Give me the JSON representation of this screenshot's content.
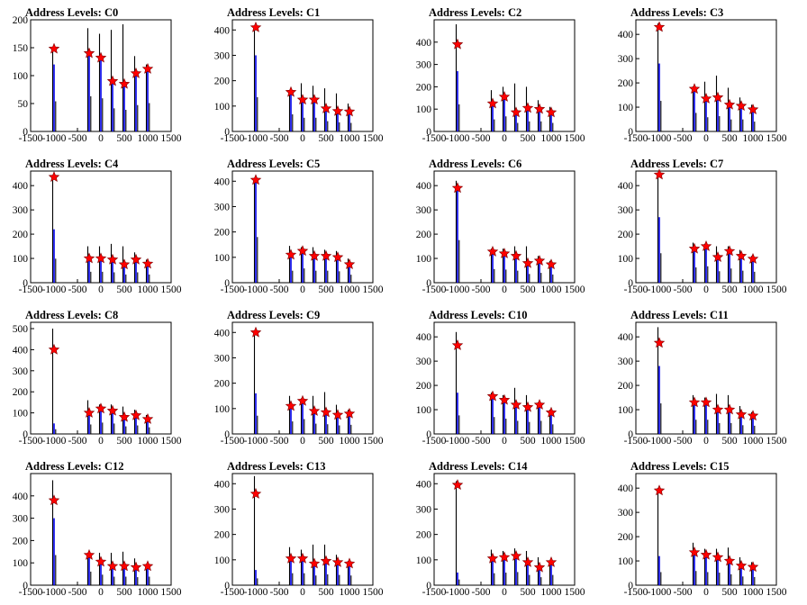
{
  "chart_data": [
    {
      "type": "bar",
      "title": "Address Levels: C0",
      "xlim": [
        -1500,
        1500
      ],
      "ylim": [
        0,
        200
      ],
      "xticks": [
        -1500,
        -1000,
        -500,
        0,
        500,
        1000,
        1500
      ],
      "yticks": [
        0,
        50,
        100,
        150,
        200
      ],
      "centers": [
        -1000,
        -250,
        0,
        250,
        500,
        750,
        1000
      ],
      "peaks": [
        [
          148,
          120
        ],
        [
          185,
          140
        ],
        [
          175,
          132
        ],
        [
          182,
          92
        ],
        [
          192,
          86
        ],
        [
          135,
          105
        ],
        [
          120,
          113
        ]
      ],
      "stars": [
        148,
        140,
        132,
        90,
        85,
        104,
        112
      ]
    },
    {
      "type": "bar",
      "title": "Address Levels: C1",
      "xlim": [
        -1500,
        1500
      ],
      "ylim": [
        0,
        440
      ],
      "xticks": [
        -1500,
        -1000,
        -500,
        0,
        500,
        1000,
        1500
      ],
      "yticks": [
        0,
        100,
        200,
        300,
        400
      ],
      "centers": [
        -1000,
        -250,
        0,
        250,
        500,
        750,
        1000
      ],
      "peaks": [
        [
          410,
          300
        ],
        [
          160,
          150
        ],
        [
          190,
          120
        ],
        [
          180,
          120
        ],
        [
          170,
          90
        ],
        [
          150,
          80
        ],
        [
          110,
          75
        ]
      ],
      "stars": [
        410,
        155,
        125,
        125,
        90,
        80,
        78
      ]
    },
    {
      "type": "bar",
      "title": "Address Levels: C2",
      "xlim": [
        -1500,
        1500
      ],
      "ylim": [
        0,
        500
      ],
      "xticks": [
        -1500,
        -1000,
        -500,
        0,
        500,
        1000,
        1500
      ],
      "yticks": [
        0,
        100,
        200,
        300,
        400
      ],
      "centers": [
        -1000,
        -250,
        0,
        250,
        500,
        750,
        1000
      ],
      "peaks": [
        [
          480,
          270
        ],
        [
          185,
          120
        ],
        [
          200,
          150
        ],
        [
          215,
          85
        ],
        [
          200,
          100
        ],
        [
          140,
          100
        ],
        [
          110,
          85
        ]
      ],
      "stars": [
        390,
        125,
        155,
        85,
        105,
        100,
        85
      ]
    },
    {
      "type": "bar",
      "title": "Address Levels: C3",
      "xlim": [
        -1500,
        1500
      ],
      "ylim": [
        0,
        460
      ],
      "xticks": [
        -1500,
        -1000,
        -500,
        0,
        500,
        1000,
        1500
      ],
      "yticks": [
        0,
        100,
        200,
        300,
        400
      ],
      "centers": [
        -1000,
        -250,
        0,
        250,
        500,
        750,
        1000
      ],
      "peaks": [
        [
          445,
          280
        ],
        [
          185,
          170
        ],
        [
          205,
          130
        ],
        [
          230,
          140
        ],
        [
          180,
          110
        ],
        [
          140,
          110
        ],
        [
          110,
          90
        ]
      ],
      "stars": [
        430,
        175,
        135,
        140,
        110,
        105,
        90
      ]
    },
    {
      "type": "bar",
      "title": "Address Levels: C4",
      "xlim": [
        -1500,
        1500
      ],
      "ylim": [
        0,
        460
      ],
      "xticks": [
        -1500,
        -1000,
        -500,
        0,
        500,
        1000,
        1500
      ],
      "yticks": [
        0,
        100,
        200,
        300,
        400
      ],
      "centers": [
        -1000,
        -250,
        0,
        250,
        500,
        750,
        1000
      ],
      "peaks": [
        [
          440,
          220
        ],
        [
          150,
          100
        ],
        [
          150,
          100
        ],
        [
          160,
          95
        ],
        [
          150,
          75
        ],
        [
          125,
          95
        ],
        [
          95,
          75
        ]
      ],
      "stars": [
        435,
        100,
        100,
        95,
        75,
        95,
        78
      ]
    },
    {
      "type": "bar",
      "title": "Address Levels: C5",
      "xlim": [
        -1500,
        1500
      ],
      "ylim": [
        0,
        440
      ],
      "xticks": [
        -1500,
        -1000,
        -500,
        0,
        500,
        1000,
        1500
      ],
      "yticks": [
        0,
        100,
        200,
        300,
        400
      ],
      "centers": [
        -1000,
        -250,
        0,
        250,
        500,
        750,
        1000
      ],
      "peaks": [
        [
          410,
          400
        ],
        [
          145,
          105
        ],
        [
          140,
          125
        ],
        [
          140,
          105
        ],
        [
          130,
          105
        ],
        [
          125,
          100
        ],
        [
          95,
          70
        ]
      ],
      "stars": [
        405,
        110,
        125,
        105,
        105,
        100,
        72
      ]
    },
    {
      "type": "bar",
      "title": "Address Levels: C6",
      "xlim": [
        -1500,
        1500
      ],
      "ylim": [
        0,
        460
      ],
      "xticks": [
        -1500,
        -1000,
        -500,
        0,
        500,
        1000,
        1500
      ],
      "yticks": [
        0,
        100,
        200,
        300,
        400
      ],
      "centers": [
        -1000,
        -250,
        0,
        250,
        500,
        750,
        1000
      ],
      "peaks": [
        [
          420,
          390
        ],
        [
          140,
          125
        ],
        [
          140,
          120
        ],
        [
          150,
          110
        ],
        [
          150,
          80
        ],
        [
          110,
          90
        ],
        [
          90,
          75
        ]
      ],
      "stars": [
        390,
        128,
        120,
        110,
        80,
        90,
        75
      ]
    },
    {
      "type": "bar",
      "title": "Address Levels: C7",
      "xlim": [
        -1500,
        1500
      ],
      "ylim": [
        0,
        460
      ],
      "xticks": [
        -1500,
        -1000,
        -500,
        0,
        500,
        1000,
        1500
      ],
      "yticks": [
        0,
        100,
        200,
        300,
        400
      ],
      "centers": [
        -1000,
        -250,
        0,
        250,
        500,
        750,
        1000
      ],
      "peaks": [
        [
          450,
          270
        ],
        [
          165,
          140
        ],
        [
          160,
          150
        ],
        [
          150,
          105
        ],
        [
          150,
          130
        ],
        [
          135,
          110
        ],
        [
          110,
          100
        ]
      ],
      "stars": [
        445,
        140,
        150,
        105,
        130,
        110,
        98
      ]
    },
    {
      "type": "bar",
      "title": "Address Levels: C8",
      "xlim": [
        -1500,
        1500
      ],
      "ylim": [
        0,
        530
      ],
      "xticks": [
        -1500,
        -1000,
        -500,
        0,
        500,
        1000,
        1500
      ],
      "yticks": [
        0,
        100,
        200,
        300,
        400,
        500
      ],
      "centers": [
        -1000,
        -250,
        0,
        250,
        500,
        750,
        1000
      ],
      "peaks": [
        [
          500,
          50
        ],
        [
          160,
          100
        ],
        [
          140,
          120
        ],
        [
          140,
          110
        ],
        [
          130,
          80
        ],
        [
          115,
          90
        ],
        [
          90,
          70
        ]
      ],
      "stars": [
        400,
        100,
        120,
        110,
        80,
        88,
        70
      ]
    },
    {
      "type": "bar",
      "title": "Address Levels: C9",
      "xlim": [
        -1500,
        1500
      ],
      "ylim": [
        0,
        440
      ],
      "xticks": [
        -1500,
        -1000,
        -500,
        0,
        500,
        1000,
        1500
      ],
      "yticks": [
        0,
        100,
        200,
        300,
        400
      ],
      "centers": [
        -1000,
        -250,
        0,
        250,
        500,
        750,
        1000
      ],
      "peaks": [
        [
          400,
          160
        ],
        [
          150,
          110
        ],
        [
          140,
          130
        ],
        [
          150,
          90
        ],
        [
          165,
          85
        ],
        [
          115,
          75
        ],
        [
          95,
          80
        ]
      ],
      "stars": [
        400,
        110,
        130,
        90,
        85,
        75,
        80
      ]
    },
    {
      "type": "bar",
      "title": "Address Levels: C10",
      "xlim": [
        -1500,
        1500
      ],
      "ylim": [
        0,
        460
      ],
      "xticks": [
        -1500,
        -1000,
        -500,
        0,
        500,
        1000,
        1500
      ],
      "yticks": [
        0,
        100,
        200,
        300,
        400
      ],
      "centers": [
        -1000,
        -250,
        0,
        250,
        500,
        750,
        1000
      ],
      "peaks": [
        [
          420,
          170
        ],
        [
          170,
          155
        ],
        [
          160,
          140
        ],
        [
          190,
          120
        ],
        [
          160,
          110
        ],
        [
          130,
          120
        ],
        [
          100,
          88
        ]
      ],
      "stars": [
        365,
        155,
        140,
        120,
        110,
        120,
        88
      ]
    },
    {
      "type": "bar",
      "title": "Address Levels: C11",
      "xlim": [
        -1500,
        1500
      ],
      "ylim": [
        0,
        460
      ],
      "xticks": [
        -1500,
        -1000,
        -500,
        0,
        500,
        1000,
        1500
      ],
      "yticks": [
        0,
        100,
        200,
        300,
        400
      ],
      "centers": [
        -1000,
        -250,
        0,
        250,
        500,
        750,
        1000
      ],
      "peaks": [
        [
          440,
          280
        ],
        [
          160,
          130
        ],
        [
          150,
          130
        ],
        [
          165,
          100
        ],
        [
          160,
          100
        ],
        [
          115,
          80
        ],
        [
          90,
          75
        ]
      ],
      "stars": [
        375,
        130,
        130,
        100,
        100,
        80,
        75
      ]
    },
    {
      "type": "bar",
      "title": "Address Levels: C12",
      "xlim": [
        -1500,
        1500
      ],
      "ylim": [
        0,
        500
      ],
      "xticks": [
        -1500,
        -1000,
        -500,
        0,
        500,
        1000,
        1500
      ],
      "yticks": [
        0,
        100,
        200,
        300,
        400
      ],
      "centers": [
        -1000,
        -250,
        0,
        250,
        500,
        750,
        1000
      ],
      "peaks": [
        [
          470,
          300
        ],
        [
          145,
          135
        ],
        [
          145,
          105
        ],
        [
          145,
          85
        ],
        [
          150,
          85
        ],
        [
          120,
          80
        ],
        [
          95,
          85
        ]
      ],
      "stars": [
        380,
        135,
        105,
        85,
        85,
        80,
        85
      ]
    },
    {
      "type": "bar",
      "title": "Address Levels: C13",
      "xlim": [
        -1500,
        1500
      ],
      "ylim": [
        0,
        440
      ],
      "xticks": [
        -1500,
        -1000,
        -500,
        0,
        500,
        1000,
        1500
      ],
      "yticks": [
        0,
        100,
        200,
        300,
        400
      ],
      "centers": [
        -1000,
        -250,
        0,
        250,
        500,
        750,
        1000
      ],
      "peaks": [
        [
          430,
          60
        ],
        [
          150,
          105
        ],
        [
          140,
          105
        ],
        [
          160,
          85
        ],
        [
          160,
          95
        ],
        [
          120,
          90
        ],
        [
          95,
          85
        ]
      ],
      "stars": [
        360,
        105,
        105,
        85,
        95,
        90,
        85
      ]
    },
    {
      "type": "bar",
      "title": "Address Levels: C14",
      "xlim": [
        -1500,
        1500
      ],
      "ylim": [
        0,
        440
      ],
      "xticks": [
        -1500,
        -1000,
        -500,
        0,
        500,
        1000,
        1500
      ],
      "yticks": [
        0,
        100,
        200,
        300,
        400
      ],
      "centers": [
        -1000,
        -250,
        0,
        250,
        500,
        750,
        1000
      ],
      "peaks": [
        [
          410,
          50
        ],
        [
          140,
          105
        ],
        [
          135,
          110
        ],
        [
          145,
          115
        ],
        [
          135,
          90
        ],
        [
          110,
          70
        ],
        [
          95,
          90
        ]
      ],
      "stars": [
        395,
        105,
        110,
        115,
        90,
        70,
        90
      ]
    },
    {
      "type": "bar",
      "title": "Address Levels: C15",
      "xlim": [
        -1500,
        1500
      ],
      "ylim": [
        0,
        460
      ],
      "xticks": [
        -1500,
        -1000,
        -500,
        0,
        500,
        1000,
        1500
      ],
      "yticks": [
        0,
        100,
        200,
        300,
        400
      ],
      "centers": [
        -1000,
        -250,
        0,
        250,
        500,
        750,
        1000
      ],
      "peaks": [
        [
          400,
          120
        ],
        [
          175,
          130
        ],
        [
          150,
          120
        ],
        [
          150,
          115
        ],
        [
          155,
          100
        ],
        [
          115,
          80
        ],
        [
          95,
          75
        ]
      ],
      "stars": [
        390,
        135,
        125,
        115,
        100,
        80,
        75
      ]
    }
  ]
}
